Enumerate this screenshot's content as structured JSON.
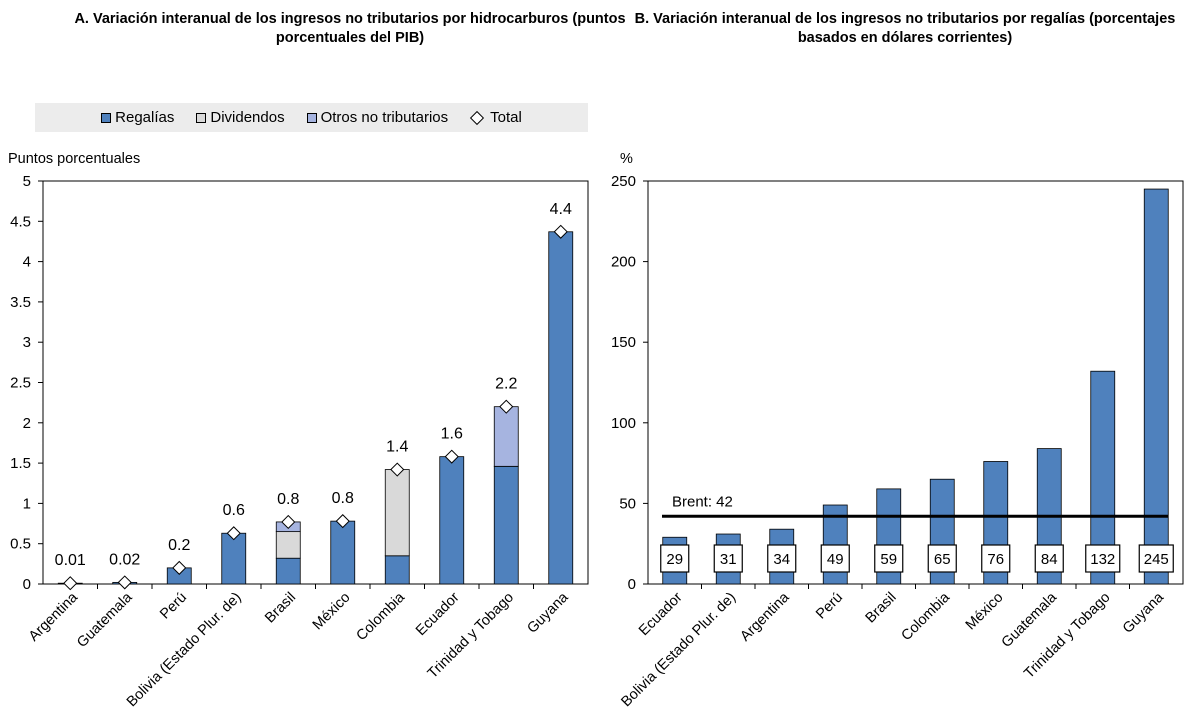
{
  "chart_data": [
    {
      "type": "bar",
      "stacked": true,
      "title": "A. Variación interanual de los ingresos no tributarios por hidrocarburos (puntos porcentuales del PIB)",
      "ylabel": "Puntos porcentuales",
      "ylim": [
        0,
        5
      ],
      "yticks": [
        "0",
        "0.5",
        "1",
        "1.5",
        "2",
        "2.5",
        "3",
        "3.5",
        "4",
        "4.5",
        "5"
      ],
      "categories": [
        "Argentina",
        "Guatemala",
        "Perú",
        "Bolivia (Estado Plur. de)",
        "Brasil",
        "México",
        "Colombia",
        "Ecuador",
        "Trinidad y Tobago",
        "Guyana"
      ],
      "series": [
        {
          "name": "Regalías",
          "color": "#4f81bd",
          "values": [
            0.01,
            0.02,
            0.2,
            0.63,
            0.32,
            0.78,
            0.35,
            1.58,
            1.46,
            4.37
          ]
        },
        {
          "name": "Dividendos",
          "color": "#d9d9d9",
          "values": [
            0,
            0,
            0,
            0,
            0.33,
            0,
            1.07,
            0,
            0,
            0
          ]
        },
        {
          "name": "Otros no tributarios",
          "color": "#a6b4e0",
          "values": [
            0,
            0,
            0,
            0,
            0.12,
            0,
            0,
            0,
            0.74,
            0
          ]
        }
      ],
      "total": {
        "name": "Total",
        "values": [
          0.01,
          0.02,
          0.2,
          0.63,
          0.77,
          0.78,
          1.42,
          1.58,
          2.2,
          4.37
        ]
      },
      "total_labels": [
        "0.01",
        "0.02",
        "0.2",
        "0.6",
        "0.8",
        "0.8",
        "1.4",
        "1.6",
        "2.2",
        "4.4"
      ],
      "legend_position": "top"
    },
    {
      "type": "bar",
      "title": "B. Variación interanual de los ingresos no tributarios por regalías (porcentajes basados en dólares corrientes)",
      "ylabel": "%",
      "ylim": [
        0,
        250
      ],
      "yticks": [
        "0",
        "50",
        "100",
        "150",
        "200",
        "250"
      ],
      "categories": [
        "Ecuador",
        "Bolivia (Estado Plur. de)",
        "Argentina",
        "Perú",
        "Brasil",
        "Colombia",
        "México",
        "Guatemala",
        "Trinidad y Tobago",
        "Guyana"
      ],
      "values": [
        29,
        31,
        34,
        49,
        59,
        65,
        76,
        84,
        132,
        245
      ],
      "value_labels": [
        "29",
        "31",
        "34",
        "49",
        "59",
        "65",
        "76",
        "84",
        "132",
        "245"
      ],
      "color": "#4f81bd",
      "reference_line": {
        "label": "Brent: 42",
        "value": 42
      }
    }
  ]
}
